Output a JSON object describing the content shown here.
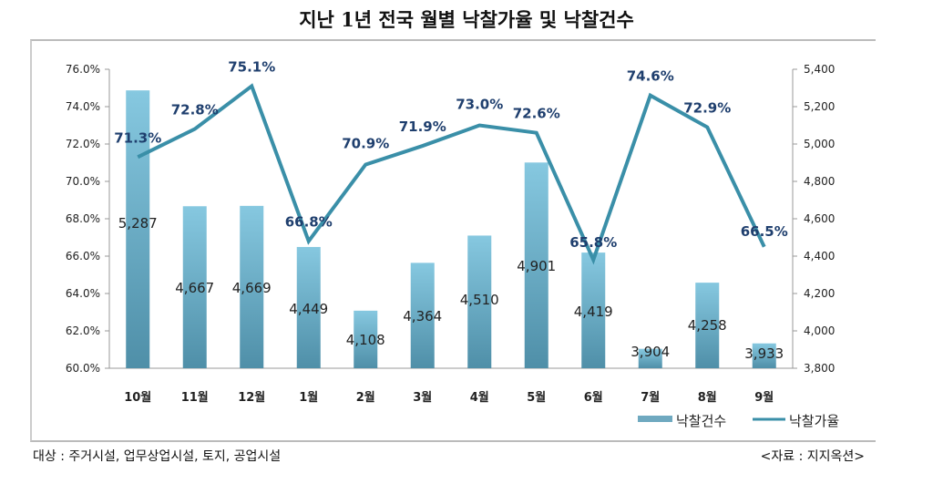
{
  "chart_data": {
    "type": "bar+line",
    "title": "지난 1년 전국 월별 낙찰가율 및 낙찰건수",
    "categories": [
      "10월",
      "11월",
      "12월",
      "1월",
      "2월",
      "3월",
      "4월",
      "5월",
      "6월",
      "7월",
      "8월",
      "9월"
    ],
    "series": [
      {
        "name": "낙찰건수",
        "type": "bar",
        "axis": "right",
        "color": "#6fb3cf",
        "values": [
          5287,
          4667,
          4669,
          4449,
          4108,
          4364,
          4510,
          4901,
          4419,
          3904,
          4258,
          3933
        ],
        "labels": [
          "5,287",
          "4,667",
          "4,669",
          "4,449",
          "4,108",
          "4,364",
          "4,510",
          "4,901",
          "4,419",
          "3,904",
          "4,258",
          "3,933"
        ]
      },
      {
        "name": "낙찰가율",
        "type": "line",
        "axis": "left",
        "color": "#3a8fa8",
        "values": [
          71.3,
          72.8,
          75.1,
          66.8,
          70.9,
          71.9,
          73.0,
          72.6,
          65.8,
          74.6,
          72.9,
          66.5
        ],
        "labels": [
          "71.3%",
          "72.8%",
          "75.1%",
          "66.8%",
          "70.9%",
          "71.9%",
          "73.0%",
          "72.6%",
          "65.8%",
          "74.6%",
          "72.9%",
          "66.5%"
        ]
      }
    ],
    "left_axis": {
      "range": [
        60,
        76
      ],
      "ticks": [
        "60.0%",
        "62.0%",
        "64.0%",
        "66.0%",
        "68.0%",
        "70.0%",
        "72.0%",
        "74.0%",
        "76.0%"
      ]
    },
    "right_axis": {
      "range": [
        3800,
        5400
      ],
      "ticks": [
        "3,800",
        "4,000",
        "4,200",
        "4,400",
        "4,600",
        "4,800",
        "5,000",
        "5,200",
        "5,400"
      ]
    },
    "grid": false,
    "legend": "bottom-right"
  },
  "note": "대상 : 주거시설, 업무상업시설, 토지, 공업시설",
  "source": "<자료 : 지지옥션>"
}
